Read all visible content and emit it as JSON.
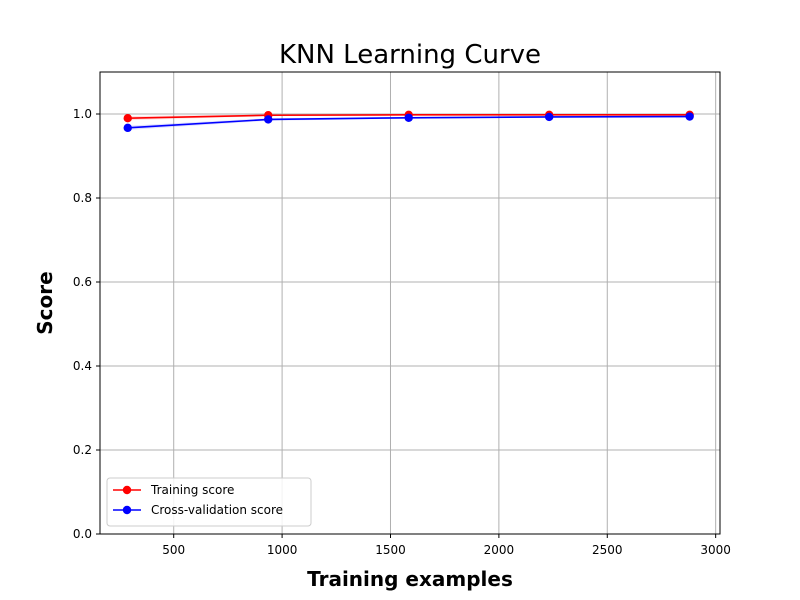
{
  "chart_data": {
    "type": "line",
    "title": "KNN Learning Curve",
    "xlabel": "Training examples",
    "ylabel": "Score",
    "xlim": [
      160,
      3020
    ],
    "ylim": [
      0.0,
      1.1
    ],
    "xticks": [
      500,
      1000,
      1500,
      2000,
      2500,
      3000
    ],
    "xtick_labels": [
      "500",
      "1000",
      "1500",
      "2000",
      "2500",
      "3000"
    ],
    "yticks": [
      0.0,
      0.2,
      0.4,
      0.6,
      0.8,
      1.0
    ],
    "ytick_labels": [
      "0.0",
      "0.2",
      "0.4",
      "0.6",
      "0.8",
      "1.0"
    ],
    "grid": true,
    "legend_location": "lower-left",
    "x": [
      288,
      936,
      1584,
      2232,
      2880
    ],
    "series": [
      {
        "name": "Training score",
        "color": "#ff0000",
        "marker": "circle",
        "values": [
          0.99,
          0.997,
          0.998,
          0.998,
          0.998
        ],
        "band_lower": [
          0.985,
          0.995,
          0.997,
          0.997,
          0.997
        ],
        "band_upper": [
          0.995,
          0.999,
          0.999,
          0.999,
          0.999
        ]
      },
      {
        "name": "Cross-validation score",
        "color": "#0000ff",
        "marker": "circle",
        "values": [
          0.967,
          0.987,
          0.991,
          0.993,
          0.994
        ],
        "band_lower": [
          0.962,
          0.984,
          0.989,
          0.991,
          0.992
        ],
        "band_upper": [
          0.972,
          0.99,
          0.993,
          0.995,
          0.996
        ]
      }
    ]
  }
}
